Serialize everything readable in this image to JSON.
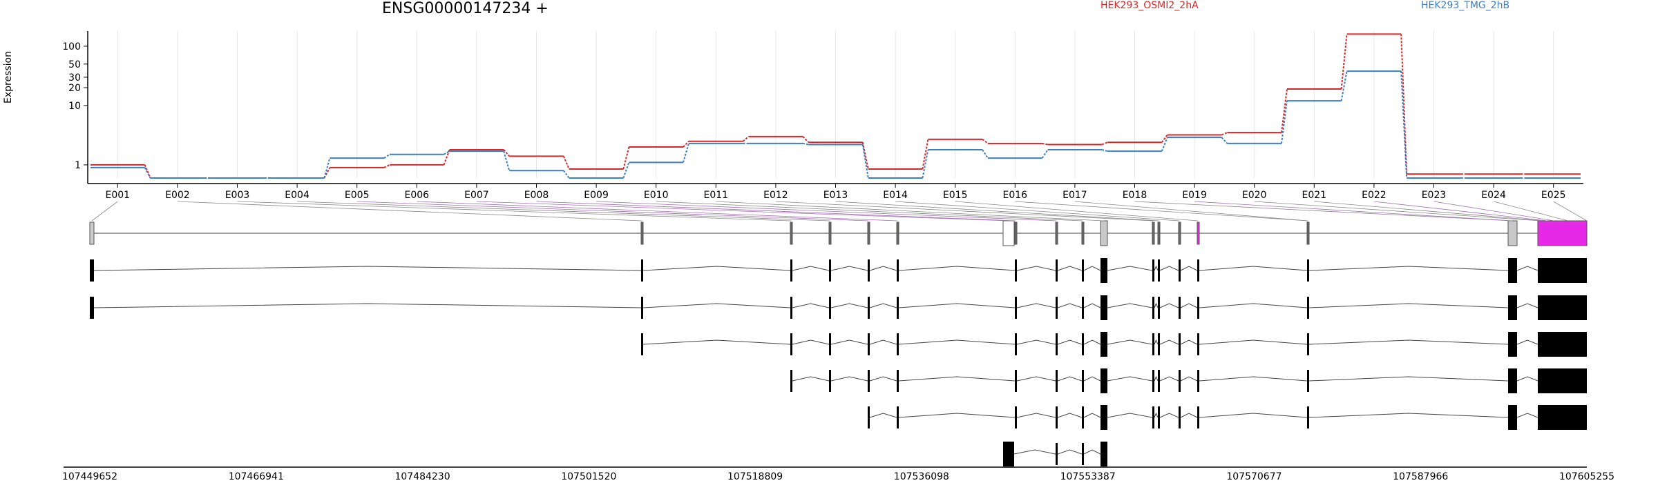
{
  "title": "ENSG00000147234 +",
  "ylabel": "Expression",
  "colors": {
    "series_a": "#d62728",
    "series_b": "#3c7fbf",
    "highlight": "#e629e6",
    "exon_gray": "#c8c8c8",
    "line": "#444444"
  },
  "chart_data": {
    "type": "line",
    "title": "ENSG00000147234 +",
    "xlabel": "",
    "ylabel": "Expression",
    "yscale": "log",
    "ylim": [
      0.6,
      180
    ],
    "ytick_labels": [
      "1",
      "10",
      "20",
      "30",
      "50",
      "100"
    ],
    "grid": "vertical",
    "legend_position": "top-right",
    "categories": [
      "E001",
      "E002",
      "E003",
      "E004",
      "E005",
      "E006",
      "E007",
      "E008",
      "E009",
      "E010",
      "E011",
      "E012",
      "E013",
      "E014",
      "E015",
      "E016",
      "E017",
      "E018",
      "E019",
      "E020",
      "E021",
      "E022",
      "E023",
      "E024",
      "E025"
    ],
    "series": [
      {
        "name": "HEK293_OSMI2_2hA",
        "values": [
          1.0,
          0.6,
          0.6,
          0.6,
          0.9,
          1.0,
          1.8,
          1.4,
          0.85,
          2.0,
          2.5,
          3.0,
          2.4,
          0.85,
          2.7,
          2.3,
          2.2,
          2.4,
          3.2,
          3.5,
          19,
          160,
          0.7,
          0.7,
          0.7
        ]
      },
      {
        "name": "HEK293_TMG_2hB",
        "values": [
          0.9,
          0.6,
          0.6,
          0.6,
          1.3,
          1.5,
          1.7,
          0.8,
          0.6,
          1.1,
          2.3,
          2.3,
          2.2,
          0.6,
          1.8,
          1.3,
          1.8,
          1.7,
          2.9,
          2.3,
          12,
          38,
          0.6,
          0.6,
          0.6
        ]
      }
    ],
    "genomic_axis": {
      "tick_labels": [
        "107449652",
        "107466941",
        "107484230",
        "107501520",
        "107518809",
        "107536098",
        "107553387",
        "107570677",
        "107587966",
        "107605255"
      ]
    }
  }
}
